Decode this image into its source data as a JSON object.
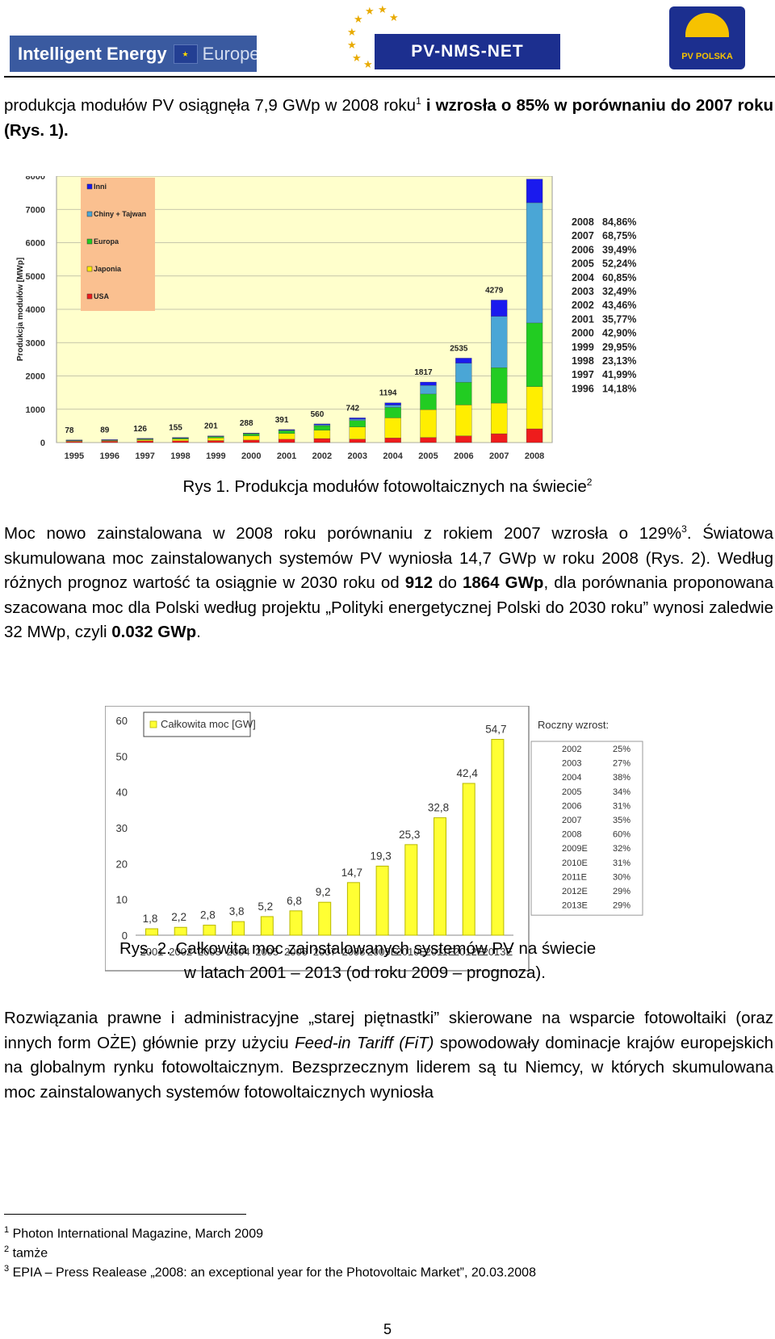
{
  "header": {
    "logo_left_name": "Intelligent Energy",
    "logo_left_suffix": "Europe",
    "logo_center": "PV-NMS-NET",
    "logo_right": "PV POLSKA"
  },
  "intro": {
    "t1": "produkcja modułów PV osiągnęła 7,9 GWp w 2008 roku",
    "sup1": "1",
    "t2": " i wzrosła o 85% w porównaniu do 2007 roku (Rys. 1)."
  },
  "fig1_caption": {
    "text": "Rys 1. Produkcja modułów fotowoltaicznych na świecie",
    "sup": "2"
  },
  "para2": {
    "a": "Moc nowo zainstalowana w 2008 roku porównaniu z rokiem 2007 wzrosła o 129%",
    "sup3": "3",
    "b": ". Światowa skumulowana moc zainstalowanych systemów PV wyniosła 14,7 GWp w roku 2008 (Rys. 2). Według różnych prognoz wartość ta osiągnie w 2030 roku od ",
    "bold1": "912",
    "c": " do ",
    "bold2": "1864 GWp",
    "d": ", dla porównania proponowana szacowana moc dla Polski według projektu „Polityki energetycznej Polski do 2030 roku” wynosi zaledwie 32 MWp, czyli ",
    "bold3": "0.032 GWp",
    "e": "."
  },
  "fig2_caption": {
    "line1": "Rys. 2. Całkowita moc zainstalowanych systemów PV na świecie",
    "line2": "w latach 2001 – 2013 (od roku 2009 – prognoza)."
  },
  "para3": {
    "a": "Rozwiązania prawne i administracyjne „starej piętnastki” skierowane na wsparcie fotowoltaiki (oraz innych form OŻE) głównie przy użyciu ",
    "italic": "Feed-in Tariff (FiT)",
    "b": " spowodowały dominacje krajów europejskich na globalnym rynku fotowoltaicznym. Bezsprzecznym liderem są tu Niemcy, w których skumulowana moc zainstalowanych systemów fotowoltaicznych wyniosła"
  },
  "footnotes": [
    {
      "num": "1",
      "text": "Photon International Magazine, March 2009"
    },
    {
      "num": "2",
      "text": "tamże"
    },
    {
      "num": "3",
      "text": "EPIA – Press Realease „2008: an exceptional year for the Photovoltaic Market”, 20.03.2008"
    }
  ],
  "page_number": "5",
  "colors": {
    "plot_bg": "#ffffcc",
    "legend_bg": "#fac090",
    "usa": "#ee1c1c",
    "japan": "#ffee00",
    "europe": "#22cc22",
    "china_taiwan": "#4aa6d6",
    "other": "#1a1aee",
    "bar2": "#ffff33",
    "bar2_stroke": "#b8b800"
  },
  "chart_data": [
    {
      "type": "bar",
      "stacked": true,
      "ylabel": "Produkcja modułów [MWp]",
      "ylim": [
        0,
        8000
      ],
      "yticks": [
        "0",
        "1000",
        "2000",
        "3000",
        "4000",
        "5000",
        "6000",
        "7000",
        "8000"
      ],
      "categories": [
        "1995",
        "1996",
        "1997",
        "1998",
        "1999",
        "2000",
        "2001",
        "2002",
        "2003",
        "2004",
        "2005",
        "2006",
        "2007",
        "2008"
      ],
      "totals": [
        78,
        89,
        126,
        155,
        201,
        288,
        391,
        560,
        742,
        1194,
        1817,
        2535,
        4279,
        7909
      ],
      "total_labels": [
        "78",
        "89",
        "126",
        "155",
        "201",
        "288",
        "391",
        "560",
        "742",
        "1194",
        "1817",
        "2535",
        "4279",
        "7909"
      ],
      "series": [
        {
          "name": "USA",
          "color": "#ee1c1c",
          "values": [
            35,
            39,
            51,
            53,
            60,
            75,
            100,
            121,
            103,
            139,
            154,
            202,
            266,
            412
          ]
        },
        {
          "name": "Japonia",
          "color": "#ffee00",
          "values": [
            16,
            21,
            35,
            49,
            80,
            129,
            171,
            251,
            364,
            602,
            833,
            927,
            920,
            1268
          ]
        },
        {
          "name": "Europa",
          "color": "#22cc22",
          "values": [
            20,
            19,
            30,
            34,
            40,
            61,
            86,
            135,
            193,
            314,
            470,
            680,
            1062,
            1910
          ]
        },
        {
          "name": "Chiny + Tajwan",
          "color": "#4aa6d6",
          "values": [
            2,
            3,
            3,
            6,
            8,
            11,
            14,
            26,
            43,
            70,
            260,
            575,
            1540,
            3610
          ]
        },
        {
          "name": "Inni",
          "color": "#1a1aee",
          "values": [
            5,
            7,
            7,
            13,
            13,
            12,
            20,
            27,
            39,
            69,
            100,
            151,
            491,
            709
          ]
        }
      ],
      "legend": [
        "Inni",
        "Chiny + Tajwan",
        "Europa",
        "Japonia",
        "USA"
      ],
      "legend_position": "top-left",
      "growth_table": [
        {
          "year": "2008",
          "value": "84,86%"
        },
        {
          "year": "2007",
          "value": "68,75%"
        },
        {
          "year": "2006",
          "value": "39,49%"
        },
        {
          "year": "2005",
          "value": "52,24%"
        },
        {
          "year": "2004",
          "value": "60,85%"
        },
        {
          "year": "2003",
          "value": "32,49%"
        },
        {
          "year": "2002",
          "value": "43,46%"
        },
        {
          "year": "2001",
          "value": "35,77%"
        },
        {
          "year": "2000",
          "value": "42,90%"
        },
        {
          "year": "1999",
          "value": "29,95%"
        },
        {
          "year": "1998",
          "value": "23,13%"
        },
        {
          "year": "1997",
          "value": "41,99%"
        },
        {
          "year": "1996",
          "value": "14,18%"
        }
      ]
    },
    {
      "type": "bar",
      "ylim": [
        0,
        60
      ],
      "yticks": [
        "0",
        "10",
        "20",
        "30",
        "40",
        "50",
        "60"
      ],
      "categories": [
        "2001",
        "2002",
        "2003",
        "2004",
        "2005",
        "2006",
        "2007",
        "2008",
        "2009E",
        "2010E",
        "2011E",
        "2012E",
        "2013E"
      ],
      "series": [
        {
          "name": "Całkowita moc [GW]",
          "values": [
            1.8,
            2.2,
            2.8,
            3.8,
            5.2,
            6.8,
            9.2,
            14.7,
            19.3,
            25.3,
            32.8,
            42.4,
            54.7
          ]
        }
      ],
      "value_labels": [
        "1,8",
        "2,2",
        "2,8",
        "3,8",
        "5,2",
        "6,8",
        "9,2",
        "14,7",
        "19,3",
        "25,3",
        "32,8",
        "42,4",
        "54,7"
      ],
      "legend_position": "top-left",
      "growth_title": "Roczny wzrost:",
      "growth_table": [
        {
          "year": "2002",
          "value": "25%"
        },
        {
          "year": "2003",
          "value": "27%"
        },
        {
          "year": "2004",
          "value": "38%"
        },
        {
          "year": "2005",
          "value": "34%"
        },
        {
          "year": "2006",
          "value": "31%"
        },
        {
          "year": "2007",
          "value": "35%"
        },
        {
          "year": "2008",
          "value": "60%"
        },
        {
          "year": "2009E",
          "value": "32%"
        },
        {
          "year": "2010E",
          "value": "31%"
        },
        {
          "year": "2011E",
          "value": "30%"
        },
        {
          "year": "2012E",
          "value": "29%"
        },
        {
          "year": "2013E",
          "value": "29%"
        }
      ]
    }
  ]
}
